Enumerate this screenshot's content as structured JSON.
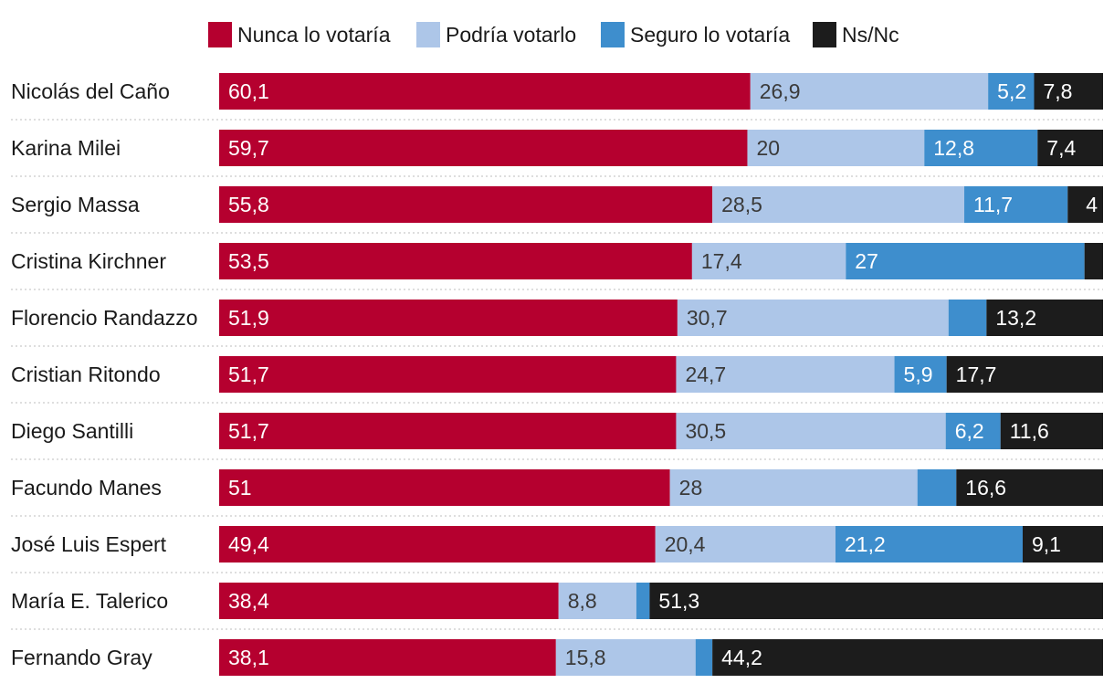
{
  "chart_data": {
    "type": "bar",
    "orientation": "horizontal",
    "stacked": true,
    "categories": [
      "Nicolás del Caño",
      "Karina Milei",
      "Sergio Massa",
      "Cristina Kirchner",
      "Florencio Randazzo",
      "Cristian Ritondo",
      "Diego Santilli",
      "Facundo Manes",
      "José Luis Espert",
      "María E. Talerico",
      "Fernando Gray"
    ],
    "series": [
      {
        "name": "Nunca lo votaría",
        "color": "#b5002f",
        "values": [
          60.1,
          59.7,
          55.8,
          53.5,
          51.9,
          51.7,
          51.7,
          51,
          49.4,
          38.4,
          38.1
        ],
        "labels": [
          "60,1",
          "59,7",
          "55,8",
          "53,5",
          "51,9",
          "51,7",
          "51,7",
          "51",
          "49,4",
          "38,4",
          "38,1"
        ]
      },
      {
        "name": "Podría votarlo",
        "color": "#adc6e8",
        "values": [
          26.9,
          20,
          28.5,
          17.4,
          30.7,
          24.7,
          30.5,
          28,
          20.4,
          8.8,
          15.8
        ],
        "labels": [
          "26,9",
          "20",
          "28,5",
          "17,4",
          "30,7",
          "24,7",
          "30,5",
          "28",
          "20,4",
          "8,8",
          "15,8"
        ]
      },
      {
        "name": "Seguro lo votaría",
        "color": "#3e8ecd",
        "values": [
          5.2,
          12.8,
          11.7,
          27,
          4.3,
          5.9,
          6.2,
          4.4,
          21.2,
          1.5,
          1.9
        ],
        "labels": [
          "5,2",
          "12,8",
          "11,7",
          "27",
          "",
          "5,9",
          "6,2",
          "",
          "21,2",
          "",
          ""
        ]
      },
      {
        "name": "Ns/Nc",
        "color": "#1c1c1c",
        "values": [
          7.8,
          7.4,
          4,
          2.1,
          13.2,
          17.7,
          11.6,
          16.6,
          9.1,
          51.3,
          44.2
        ],
        "labels": [
          "7,8",
          "7,4",
          "4",
          "",
          "13,2",
          "17,7",
          "11,6",
          "16,6",
          "9,1",
          "51,3",
          "44,2"
        ]
      }
    ],
    "xlim": [
      0,
      100
    ],
    "legend_position": "top-center",
    "grid": false,
    "title": "",
    "xlabel": "",
    "ylabel": ""
  }
}
